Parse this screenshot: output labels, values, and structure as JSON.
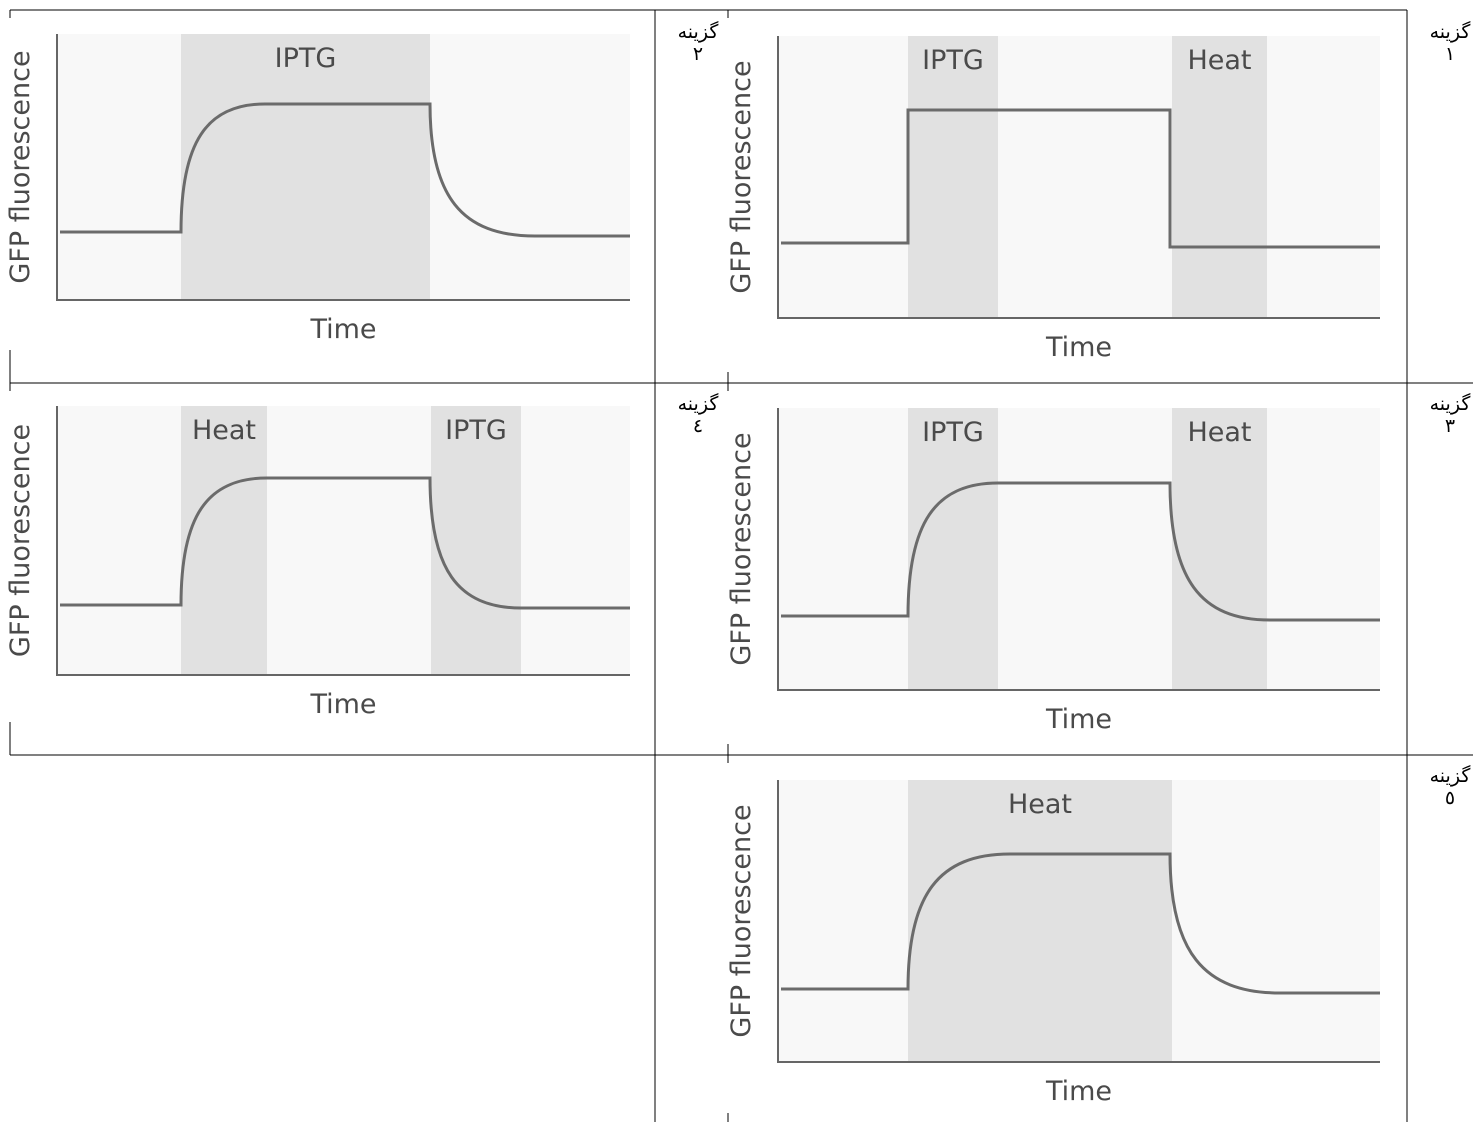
{
  "options": [
    {
      "label": "گزینه",
      "number": "۱",
      "graph": {
        "y_label": "GFP fluorescence",
        "x_label": "Time",
        "regions": [
          "IPTG",
          "Heat"
        ]
      }
    },
    {
      "label": "گزینه",
      "number": "۲",
      "graph": {
        "y_label": "GFP fluorescence",
        "x_label": "Time",
        "regions": [
          "IPTG"
        ]
      }
    },
    {
      "label": "گزینه",
      "number": "۳",
      "graph": {
        "y_label": "GFP fluorescence",
        "x_label": "Time",
        "regions": [
          "IPTG",
          "Heat"
        ]
      }
    },
    {
      "label": "گزینه",
      "number": "٤",
      "graph": {
        "y_label": "GFP fluorescence",
        "x_label": "Time",
        "regions": [
          "Heat",
          "IPTG"
        ]
      }
    },
    {
      "label": "گزینه",
      "number": "٥",
      "graph": {
        "y_label": "GFP fluorescence",
        "x_label": "Time",
        "regions": [
          "Heat"
        ]
      }
    }
  ]
}
